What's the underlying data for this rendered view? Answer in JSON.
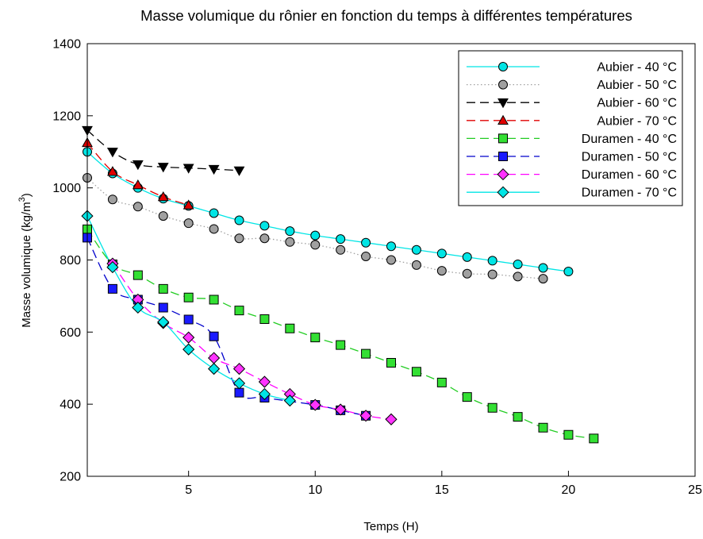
{
  "chart_data": {
    "type": "scatter",
    "title": "Masse volumique du rônier en fonction du temps à différentes températures",
    "xlabel": "Temps (H)",
    "ylabel": "Masse volumique (kg/m",
    "ylabel_sup": "3",
    "ylabel_end": ")",
    "xlim": [
      1,
      25
    ],
    "ylim": [
      200,
      1400
    ],
    "xticks": [
      5,
      10,
      15,
      20,
      25
    ],
    "yticks": [
      200,
      400,
      600,
      800,
      1000,
      1200,
      1400
    ],
    "grid": false,
    "legend_position": "top-right",
    "series": [
      {
        "name": "Aubier - 40 °C",
        "color": "#00e5e5",
        "marker": "circle",
        "markerFill": "#00e5e5",
        "line": "solid",
        "x": [
          1,
          2,
          3,
          4,
          5,
          6,
          7,
          8,
          9,
          10,
          11,
          12,
          13,
          14,
          15,
          16,
          17,
          18,
          19,
          20
        ],
        "y": [
          1100,
          1040,
          1000,
          970,
          950,
          930,
          910,
          895,
          880,
          868,
          858,
          848,
          838,
          828,
          818,
          808,
          798,
          788,
          778,
          768
        ]
      },
      {
        "name": "Aubier - 50 °C",
        "color": "#a0a0a0",
        "marker": "circle",
        "markerFill": "#a0a0a0",
        "line": "dotted",
        "x": [
          1,
          2,
          3,
          4,
          5,
          6,
          7,
          8,
          9,
          10,
          11,
          12,
          13,
          14,
          15,
          16,
          17,
          18,
          19
        ],
        "y": [
          1028,
          968,
          948,
          922,
          902,
          886,
          860,
          860,
          850,
          842,
          828,
          810,
          800,
          786,
          770,
          762,
          760,
          754,
          748
        ]
      },
      {
        "name": "Aubier - 60 °C",
        "color": "#000000",
        "marker": "triangle-down",
        "markerFill": "#000000",
        "line": "dashed",
        "x": [
          1,
          2,
          3,
          4,
          5,
          6,
          7
        ],
        "y": [
          1160,
          1100,
          1065,
          1058,
          1055,
          1052,
          1048
        ]
      },
      {
        "name": "Aubier - 70 °C",
        "color": "#e00000",
        "marker": "triangle-up",
        "markerFill": "#e00000",
        "line": "dashed",
        "x": [
          1,
          2,
          3,
          4,
          5
        ],
        "y": [
          1125,
          1045,
          1008,
          975,
          952
        ]
      },
      {
        "name": "Duramen - 40 °C",
        "color": "#22cc22",
        "marker": "square",
        "markerFill": "#33e033",
        "line": "dashed",
        "x": [
          1,
          2,
          3,
          4,
          5,
          6,
          7,
          8,
          9,
          10,
          11,
          12,
          13,
          14,
          15,
          16,
          17,
          18,
          19,
          20,
          21
        ],
        "y": [
          885,
          788,
          758,
          720,
          696,
          690,
          660,
          636,
          610,
          585,
          564,
          540,
          515,
          490,
          460,
          420,
          390,
          365,
          335,
          315,
          305
        ]
      },
      {
        "name": "Duramen - 50 °C",
        "color": "#0000cc",
        "marker": "square",
        "markerFill": "#1a1aff",
        "line": "dashed",
        "x": [
          1,
          2,
          3,
          4,
          5,
          6,
          7,
          8,
          10,
          11,
          12
        ],
        "y": [
          862,
          720,
          690,
          668,
          635,
          588,
          432,
          418,
          398,
          383,
          368
        ]
      },
      {
        "name": "Duramen - 60 °C",
        "color": "#ff00ff",
        "marker": "diamond",
        "markerFill": "#ff33ff",
        "line": "dashed",
        "x": [
          2,
          3,
          4,
          5,
          6,
          7,
          8,
          9,
          10,
          11,
          12,
          13
        ],
        "y": [
          790,
          690,
          625,
          585,
          528,
          498,
          462,
          428,
          398,
          385,
          368,
          358
        ]
      },
      {
        "name": "Duramen - 70 °C",
        "color": "#00e5e5",
        "marker": "diamond",
        "markerFill": "#00e5e5",
        "line": "solid",
        "x": [
          1,
          2,
          3,
          4,
          5,
          6,
          7,
          8,
          9
        ],
        "y": [
          922,
          780,
          668,
          628,
          552,
          498,
          458,
          428,
          410
        ]
      }
    ]
  }
}
